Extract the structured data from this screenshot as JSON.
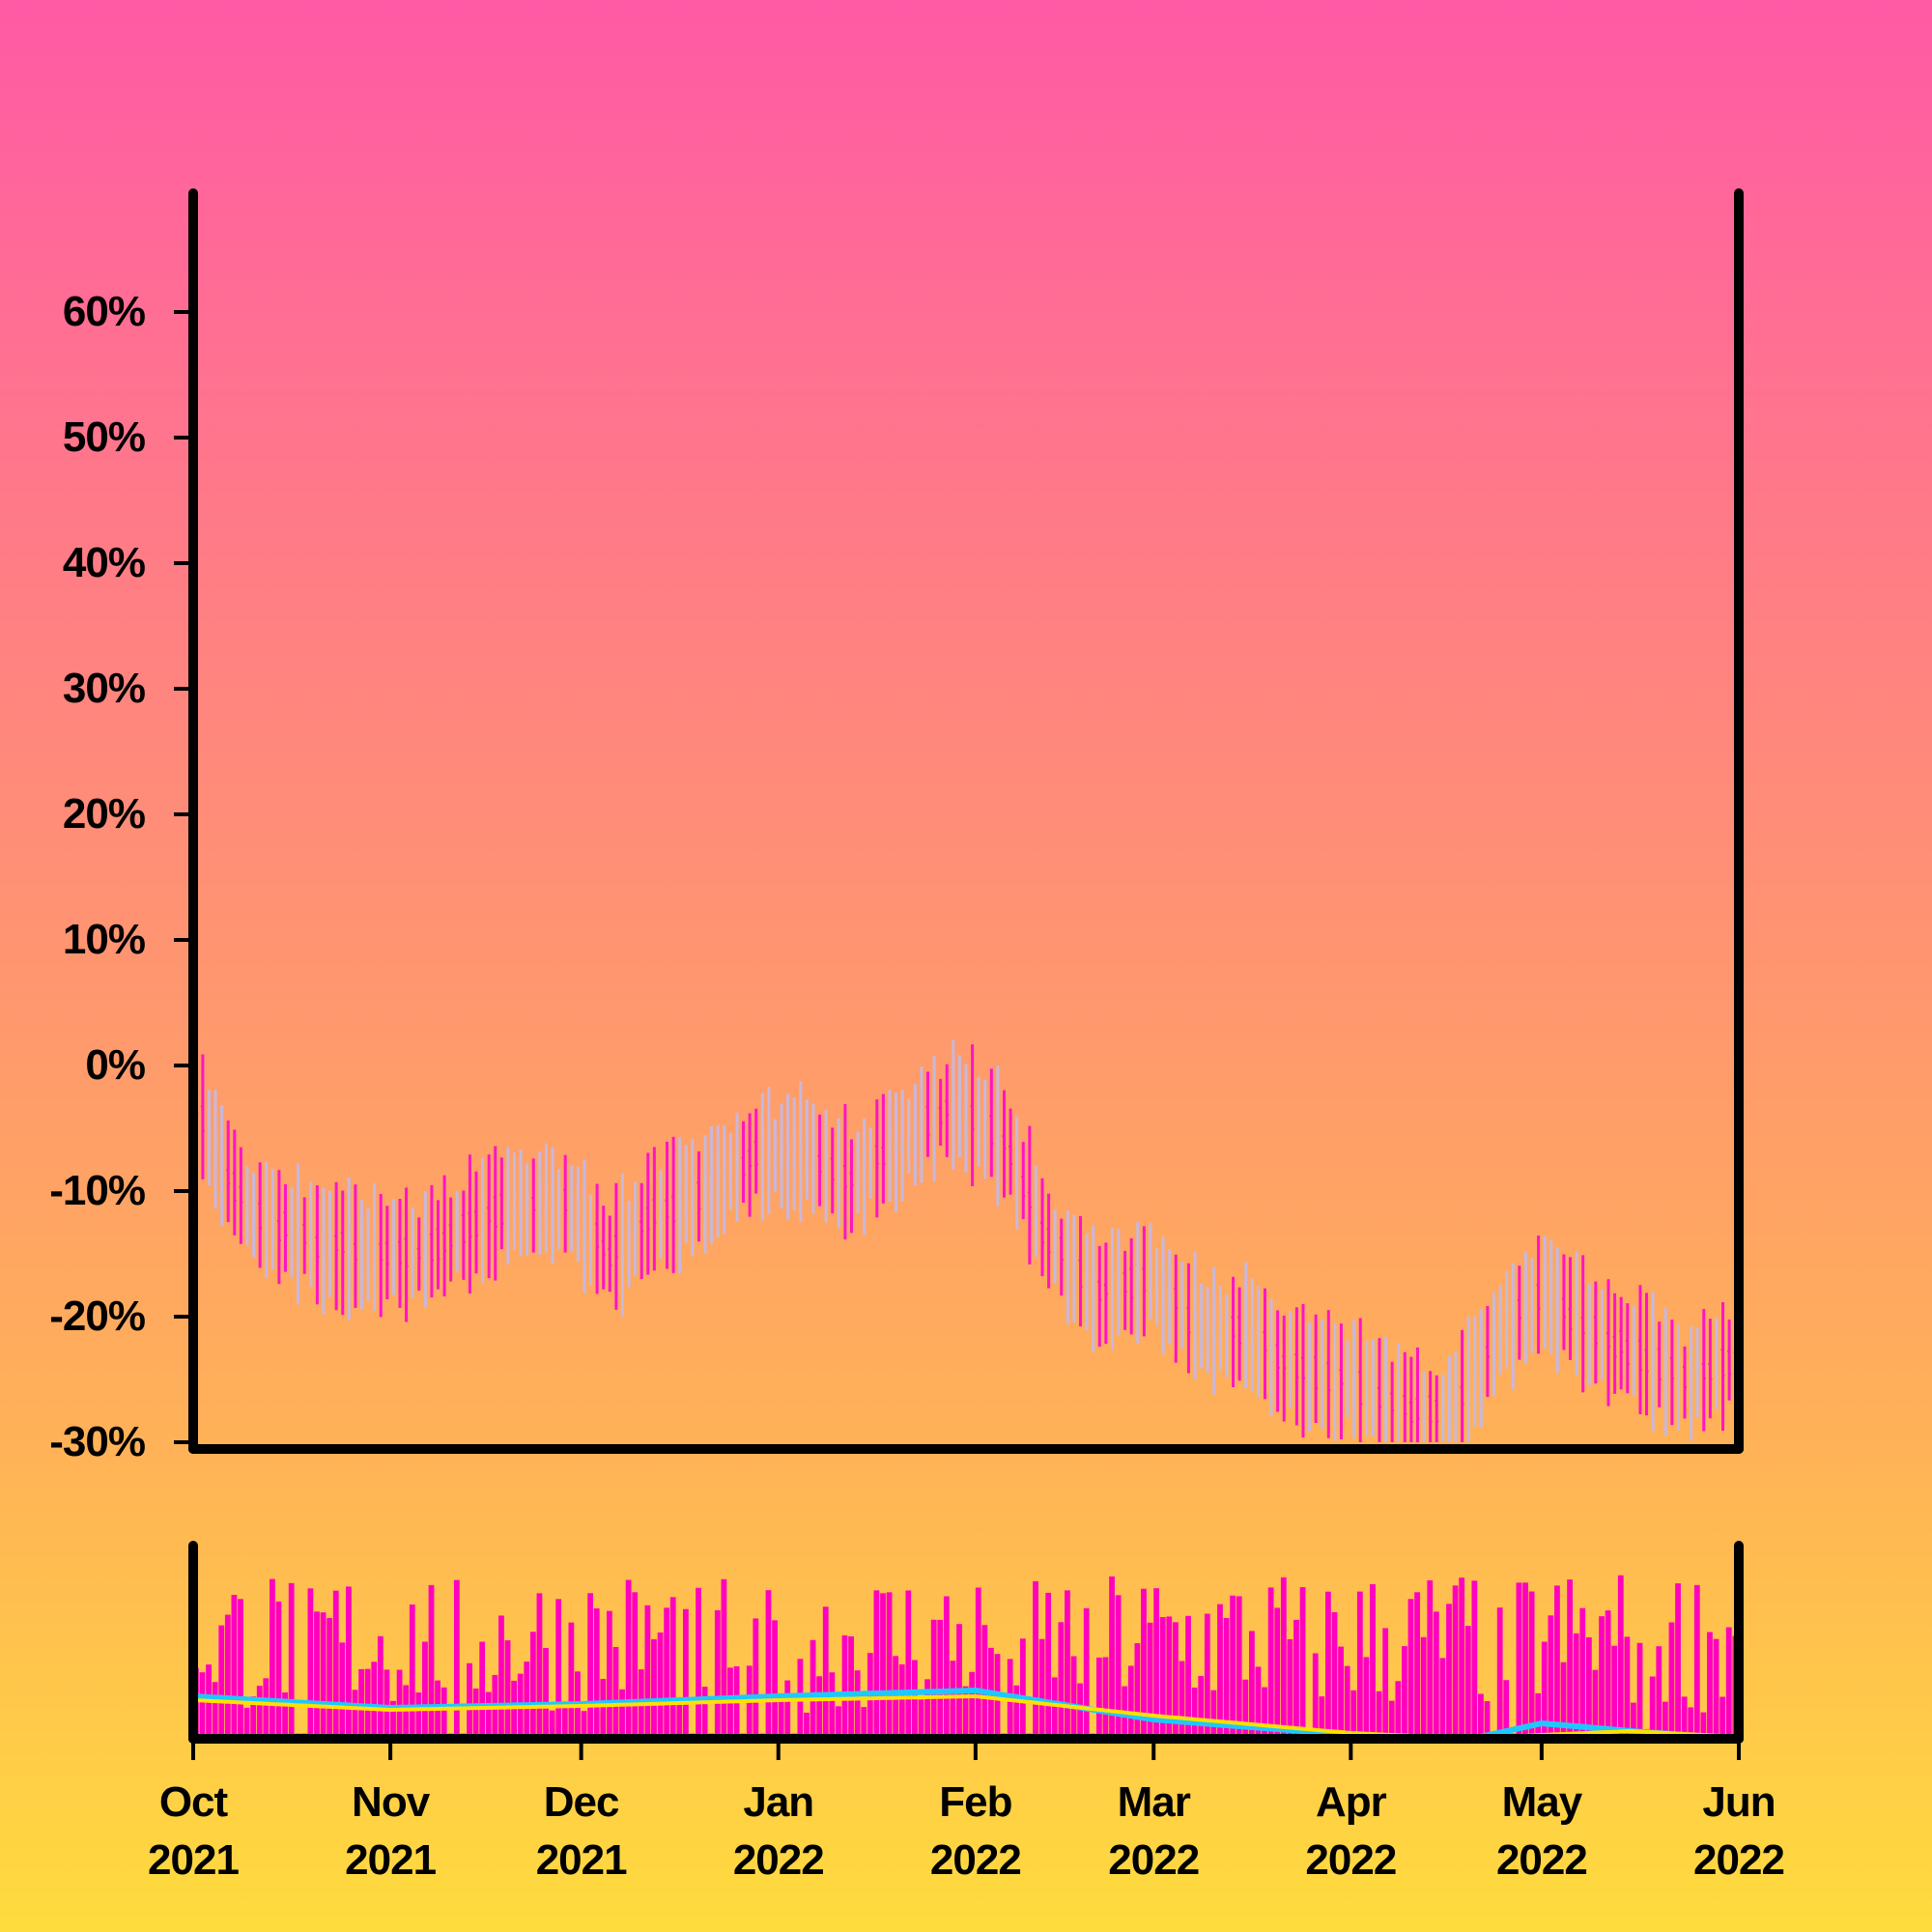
{
  "chart_data": [
    {
      "type": "ohlc",
      "panel": "price",
      "y_unit": "percent change",
      "ylim": [
        -30,
        70
      ],
      "y_ticks": [
        -30,
        -20,
        -10,
        0,
        10,
        20,
        30,
        40,
        50,
        60
      ],
      "y_tick_labels": [
        "-30%",
        "-20%",
        "-10%",
        "0%",
        "10%",
        "20%",
        "30%",
        "40%",
        "50%",
        "60%"
      ],
      "x_range": [
        "2021-10-01",
        "2022-06-01"
      ],
      "grid": false,
      "up_color": "#c8b8dc",
      "down_color": "#ff14c4",
      "keypoints": [
        [
          "2021-10-01",
          -3
        ],
        [
          "2021-10-05",
          -8
        ],
        [
          "2021-10-10",
          -12
        ],
        [
          "2021-10-20",
          -14
        ],
        [
          "2021-10-28",
          -15
        ],
        [
          "2021-11-05",
          -15
        ],
        [
          "2021-11-12",
          -13
        ],
        [
          "2021-11-20",
          -11
        ],
        [
          "2021-11-28",
          -11
        ],
        [
          "2021-12-05",
          -15
        ],
        [
          "2021-12-12",
          -12
        ],
        [
          "2021-12-20",
          -10
        ],
        [
          "2021-12-28",
          -7
        ],
        [
          "2022-01-05",
          -7
        ],
        [
          "2022-01-12",
          -9
        ],
        [
          "2022-01-20",
          -6
        ],
        [
          "2022-01-28",
          -3
        ],
        [
          "2022-02-05",
          -6
        ],
        [
          "2022-02-12",
          -14
        ],
        [
          "2022-02-20",
          -18
        ],
        [
          "2022-02-28",
          -17
        ],
        [
          "2022-03-08",
          -21
        ],
        [
          "2022-03-15",
          -21
        ],
        [
          "2022-03-22",
          -24
        ],
        [
          "2022-03-30",
          -25
        ],
        [
          "2022-04-08",
          -27
        ],
        [
          "2022-04-16",
          -28
        ],
        [
          "2022-04-24",
          -21
        ],
        [
          "2022-05-01",
          -18
        ],
        [
          "2022-05-08",
          -21
        ],
        [
          "2022-05-16",
          -23
        ],
        [
          "2022-05-23",
          -25
        ],
        [
          "2022-06-01",
          -23
        ]
      ]
    },
    {
      "type": "bar",
      "panel": "volume",
      "bar_color": "#ff00c0",
      "x_ticks": [
        "2021-10-01",
        "2021-11-01",
        "2021-12-01",
        "2022-01-01",
        "2022-02-01",
        "2022-03-01",
        "2022-04-01",
        "2022-05-01",
        "2022-06-01"
      ],
      "x_tick_labels": [
        [
          "Oct",
          "2021"
        ],
        [
          "Nov",
          "2021"
        ],
        [
          "Dec",
          "2021"
        ],
        [
          "Jan",
          "2022"
        ],
        [
          "Feb",
          "2022"
        ],
        [
          "Mar",
          "2022"
        ],
        [
          "Apr",
          "2022"
        ],
        [
          "May",
          "2022"
        ],
        [
          "Jun",
          "2022"
        ]
      ],
      "lines": [
        {
          "color": "#1ec8ff",
          "keypoints": [
            [
              "2021-10-01",
              22
            ],
            [
              "2021-11-01",
              16
            ],
            [
              "2021-12-01",
              18
            ],
            [
              "2022-01-01",
              22
            ],
            [
              "2022-02-01",
              25
            ],
            [
              "2022-03-01",
              10
            ],
            [
              "2022-04-01",
              2
            ],
            [
              "2022-04-20",
              0
            ],
            [
              "2022-05-01",
              8
            ],
            [
              "2022-05-15",
              4
            ],
            [
              "2022-06-01",
              0
            ]
          ]
        },
        {
          "color": "#ffe000",
          "keypoints": [
            [
              "2021-10-01",
              20
            ],
            [
              "2021-11-01",
              15
            ],
            [
              "2021-12-01",
              17
            ],
            [
              "2022-01-01",
              20
            ],
            [
              "2022-02-01",
              22
            ],
            [
              "2022-03-01",
              12
            ],
            [
              "2022-04-01",
              3
            ],
            [
              "2022-04-20",
              0
            ],
            [
              "2022-05-01",
              2
            ],
            [
              "2022-05-15",
              4
            ],
            [
              "2022-06-01",
              1
            ]
          ]
        }
      ]
    }
  ]
}
